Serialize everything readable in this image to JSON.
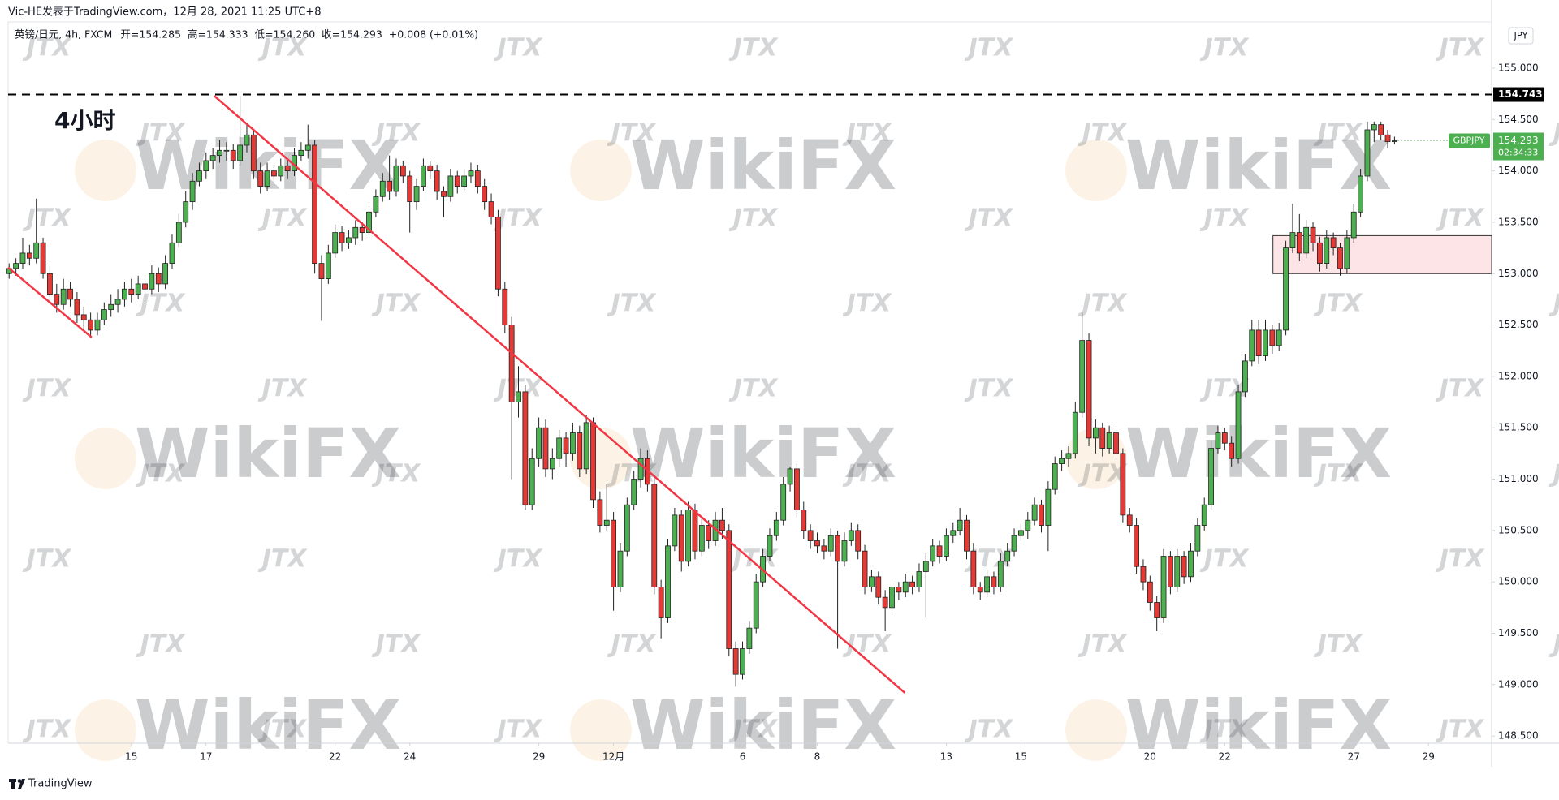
{
  "chart_data": {
    "type": "candlestick",
    "publisher": "Vic-HE发表于TradingView.com，12月 28, 2021 11:25 UTC+8",
    "symbol_line": "英镑/日元, 4h, FXCM",
    "ohlc_text": "开=154.285  高=154.333  低=154.260  收=154.293  +0.008 (+0.01%)",
    "annotation": "4小时",
    "currency": "JPY",
    "footer": "TradingView",
    "watermarks": [
      "WikiFX",
      "JTX"
    ],
    "up_color": "#4caf50",
    "down_color": "#e53935",
    "grid": false,
    "ylim": [
      148.43,
      155.45
    ],
    "yticks": [
      {
        "value": 155,
        "label": "155.000"
      },
      {
        "value": 154.5,
        "label": "154.500"
      },
      {
        "value": 154,
        "label": "154.000"
      },
      {
        "value": 153.5,
        "label": "153.500"
      },
      {
        "value": 153,
        "label": "153.000"
      },
      {
        "value": 152.5,
        "label": "152.500"
      },
      {
        "value": 152,
        "label": "152.000"
      },
      {
        "value": 151.5,
        "label": "151.500"
      },
      {
        "value": 151,
        "label": "151.000"
      },
      {
        "value": 150.5,
        "label": "150.500"
      },
      {
        "value": 150,
        "label": "150.000"
      },
      {
        "value": 149.5,
        "label": "149.500"
      },
      {
        "value": 149,
        "label": "149.000"
      },
      {
        "value": 148.5,
        "label": "148.500"
      }
    ],
    "xlim": [
      -0.15,
      218.3
    ],
    "xticks": [
      {
        "value": 18,
        "label": "15"
      },
      {
        "value": 29,
        "label": "17"
      },
      {
        "value": 48,
        "label": "22"
      },
      {
        "value": 59,
        "label": "24"
      },
      {
        "value": 78,
        "label": "29"
      },
      {
        "value": 89,
        "label": "12月"
      },
      {
        "value": 108,
        "label": "6"
      },
      {
        "value": 119,
        "label": "8"
      },
      {
        "value": 138,
        "label": "13"
      },
      {
        "value": 149,
        "label": "15"
      },
      {
        "value": 168,
        "label": "20"
      },
      {
        "value": 179,
        "label": "22"
      },
      {
        "value": 198,
        "label": "27"
      },
      {
        "value": 209,
        "label": "29"
      }
    ],
    "hline": 154.743,
    "last_price": {
      "symbol": "GBPJPY",
      "value": 154.293,
      "countdown": "02:34:33",
      "color": "#4caf50"
    },
    "trendlines": [
      {
        "x": [
          30.2,
          131.9
        ],
        "y": [
          154.73,
          148.92
        ],
        "color": "#f23645"
      },
      {
        "x": [
          -0.15,
          12.15
        ],
        "y": [
          153.06,
          152.38
        ],
        "color": "#f23645"
      }
    ],
    "zones": [
      {
        "x": [
          186.1,
          218.3
        ],
        "y": [
          153.0,
          153.37
        ],
        "color": "#fde5e7"
      }
    ],
    "ohlc": [
      [
        153.0,
        153.1,
        152.95,
        153.05
      ],
      [
        153.05,
        153.15,
        152.98,
        153.1
      ],
      [
        153.1,
        153.35,
        153.05,
        153.2
      ],
      [
        153.2,
        153.28,
        153.08,
        153.15
      ],
      [
        153.15,
        153.73,
        153.1,
        153.3
      ],
      [
        153.3,
        153.35,
        152.95,
        153.0
      ],
      [
        153.0,
        153.08,
        152.7,
        152.8
      ],
      [
        152.8,
        152.9,
        152.62,
        152.7
      ],
      [
        152.7,
        152.95,
        152.65,
        152.85
      ],
      [
        152.85,
        152.92,
        152.68,
        152.75
      ],
      [
        152.75,
        152.82,
        152.52,
        152.6
      ],
      [
        152.6,
        152.68,
        152.45,
        152.55
      ],
      [
        152.55,
        152.62,
        152.38,
        152.45
      ],
      [
        152.45,
        152.62,
        152.4,
        152.55
      ],
      [
        152.55,
        152.72,
        152.5,
        152.65
      ],
      [
        152.65,
        152.8,
        152.58,
        152.7
      ],
      [
        152.7,
        152.85,
        152.62,
        152.75
      ],
      [
        152.75,
        152.92,
        152.68,
        152.85
      ],
      [
        152.85,
        152.95,
        152.72,
        152.8
      ],
      [
        152.8,
        152.98,
        152.75,
        152.9
      ],
      [
        152.9,
        152.96,
        152.75,
        152.85
      ],
      [
        152.85,
        153.08,
        152.8,
        153.0
      ],
      [
        153.0,
        153.06,
        152.82,
        152.9
      ],
      [
        152.9,
        153.18,
        152.85,
        153.1
      ],
      [
        153.1,
        153.38,
        153.05,
        153.3
      ],
      [
        153.3,
        153.58,
        153.25,
        153.5
      ],
      [
        153.5,
        153.8,
        153.45,
        153.7
      ],
      [
        153.7,
        153.98,
        153.62,
        153.9
      ],
      [
        153.9,
        154.08,
        153.85,
        154.0
      ],
      [
        154.0,
        154.18,
        153.92,
        154.1
      ],
      [
        154.1,
        154.22,
        154.02,
        154.15
      ],
      [
        154.15,
        154.3,
        154.08,
        154.2
      ],
      [
        154.2,
        154.28,
        154.1,
        154.2
      ],
      [
        154.2,
        154.26,
        154.02,
        154.1
      ],
      [
        154.1,
        154.73,
        154.05,
        154.25
      ],
      [
        154.25,
        154.45,
        154.18,
        154.35
      ],
      [
        154.35,
        154.4,
        153.92,
        154.0
      ],
      [
        154.0,
        154.08,
        153.78,
        153.85
      ],
      [
        153.85,
        154.08,
        153.8,
        154.0
      ],
      [
        154.0,
        154.06,
        153.88,
        153.95
      ],
      [
        153.95,
        154.12,
        153.9,
        154.05
      ],
      [
        154.05,
        154.1,
        153.92,
        154.0
      ],
      [
        154.0,
        154.22,
        153.95,
        154.15
      ],
      [
        154.15,
        154.28,
        154.1,
        154.2
      ],
      [
        154.2,
        154.45,
        154.12,
        154.25
      ],
      [
        154.25,
        154.3,
        153.0,
        153.1
      ],
      [
        153.1,
        153.18,
        152.54,
        152.95
      ],
      [
        152.95,
        153.28,
        152.9,
        153.2
      ],
      [
        153.2,
        153.48,
        153.15,
        153.4
      ],
      [
        153.4,
        153.46,
        153.22,
        153.3
      ],
      [
        153.3,
        153.42,
        153.24,
        153.35
      ],
      [
        153.35,
        153.52,
        153.28,
        153.45
      ],
      [
        153.45,
        153.5,
        153.32,
        153.4
      ],
      [
        153.4,
        153.68,
        153.35,
        153.6
      ],
      [
        153.6,
        153.82,
        153.55,
        153.75
      ],
      [
        153.75,
        153.98,
        153.7,
        153.9
      ],
      [
        153.9,
        154.15,
        153.72,
        153.8
      ],
      [
        153.8,
        154.12,
        153.75,
        154.05
      ],
      [
        154.05,
        154.1,
        153.88,
        153.95
      ],
      [
        153.95,
        154.0,
        153.4,
        153.7
      ],
      [
        153.7,
        153.92,
        153.62,
        153.85
      ],
      [
        153.85,
        154.12,
        153.8,
        154.05
      ],
      [
        154.05,
        154.1,
        153.92,
        154.0
      ],
      [
        154.0,
        154.06,
        153.72,
        153.8
      ],
      [
        153.8,
        153.85,
        153.55,
        153.75
      ],
      [
        153.75,
        154.02,
        153.7,
        153.95
      ],
      [
        153.95,
        154.0,
        153.78,
        153.85
      ],
      [
        153.85,
        154.02,
        153.8,
        153.95
      ],
      [
        153.95,
        154.08,
        153.88,
        154.0
      ],
      [
        154.0,
        154.06,
        153.78,
        153.85
      ],
      [
        153.85,
        153.92,
        153.62,
        153.7
      ],
      [
        153.7,
        153.78,
        153.48,
        153.55
      ],
      [
        153.55,
        153.62,
        152.78,
        152.85
      ],
      [
        152.85,
        152.92,
        152.42,
        152.5
      ],
      [
        152.5,
        152.58,
        151.0,
        151.75
      ],
      [
        151.75,
        152.1,
        151.6,
        151.85
      ],
      [
        151.85,
        151.92,
        150.7,
        150.75
      ],
      [
        150.75,
        151.3,
        150.7,
        151.2
      ],
      [
        151.2,
        151.6,
        151.12,
        151.5
      ],
      [
        151.5,
        151.58,
        151.02,
        151.1
      ],
      [
        151.1,
        151.3,
        151.0,
        151.2
      ],
      [
        151.2,
        151.48,
        151.12,
        151.4
      ],
      [
        151.4,
        151.46,
        151.12,
        151.25
      ],
      [
        151.25,
        151.55,
        151.18,
        151.45
      ],
      [
        151.45,
        151.52,
        151.02,
        151.1
      ],
      [
        151.1,
        151.62,
        151.05,
        151.55
      ],
      [
        151.55,
        151.6,
        150.72,
        150.8
      ],
      [
        150.8,
        150.88,
        150.48,
        150.55
      ],
      [
        150.55,
        150.95,
        150.5,
        150.6
      ],
      [
        150.6,
        150.68,
        149.72,
        149.95
      ],
      [
        149.95,
        150.38,
        149.9,
        150.3
      ],
      [
        150.3,
        150.82,
        150.25,
        150.75
      ],
      [
        150.75,
        151.08,
        150.7,
        151.0
      ],
      [
        151.0,
        151.3,
        150.92,
        151.2
      ],
      [
        151.2,
        151.28,
        150.88,
        150.95
      ],
      [
        150.95,
        151.02,
        149.88,
        149.95
      ],
      [
        149.95,
        150.02,
        149.45,
        149.65
      ],
      [
        149.65,
        150.42,
        149.6,
        150.35
      ],
      [
        150.35,
        150.72,
        150.3,
        150.65
      ],
      [
        150.65,
        150.7,
        150.1,
        150.2
      ],
      [
        150.2,
        150.78,
        150.15,
        150.7
      ],
      [
        150.7,
        150.76,
        150.22,
        150.3
      ],
      [
        150.3,
        150.62,
        150.25,
        150.55
      ],
      [
        150.55,
        150.6,
        150.32,
        150.4
      ],
      [
        150.4,
        150.68,
        150.35,
        150.6
      ],
      [
        150.6,
        150.72,
        150.42,
        150.5
      ],
      [
        150.5,
        150.56,
        149.28,
        149.35
      ],
      [
        149.35,
        149.42,
        148.98,
        149.1
      ],
      [
        149.1,
        149.42,
        149.05,
        149.35
      ],
      [
        149.35,
        149.62,
        149.3,
        149.55
      ],
      [
        149.55,
        150.08,
        149.5,
        150.0
      ],
      [
        150.0,
        150.32,
        149.95,
        150.25
      ],
      [
        150.25,
        150.52,
        150.2,
        150.45
      ],
      [
        150.45,
        150.68,
        150.4,
        150.6
      ],
      [
        150.6,
        151.02,
        150.55,
        150.95
      ],
      [
        150.95,
        151.12,
        150.88,
        151.1
      ],
      [
        151.1,
        151.15,
        150.62,
        150.7
      ],
      [
        150.7,
        150.78,
        150.42,
        150.5
      ],
      [
        150.5,
        150.56,
        150.32,
        150.4
      ],
      [
        150.4,
        150.48,
        150.28,
        150.35
      ],
      [
        150.35,
        150.42,
        150.22,
        150.3
      ],
      [
        150.3,
        150.52,
        150.25,
        150.45
      ],
      [
        150.45,
        150.5,
        149.35,
        150.2
      ],
      [
        150.2,
        150.48,
        150.15,
        150.4
      ],
      [
        150.4,
        150.58,
        150.35,
        150.5
      ],
      [
        150.5,
        150.56,
        150.22,
        150.3
      ],
      [
        150.3,
        150.36,
        149.88,
        149.95
      ],
      [
        149.95,
        150.12,
        149.9,
        150.05
      ],
      [
        150.05,
        150.1,
        149.78,
        149.85
      ],
      [
        149.85,
        149.92,
        149.52,
        149.75
      ],
      [
        149.75,
        150.02,
        149.7,
        149.95
      ],
      [
        149.95,
        150.0,
        149.82,
        149.9
      ],
      [
        149.9,
        150.08,
        149.85,
        150.0
      ],
      [
        150.0,
        150.06,
        149.88,
        149.95
      ],
      [
        149.95,
        150.18,
        149.9,
        150.1
      ],
      [
        150.1,
        150.28,
        149.65,
        150.2
      ],
      [
        150.2,
        150.42,
        150.15,
        150.35
      ],
      [
        150.35,
        150.4,
        150.18,
        150.25
      ],
      [
        150.25,
        150.52,
        150.2,
        150.45
      ],
      [
        150.45,
        150.58,
        150.38,
        150.5
      ],
      [
        150.5,
        150.72,
        150.45,
        150.6
      ],
      [
        150.6,
        150.65,
        150.22,
        150.3
      ],
      [
        150.3,
        150.38,
        149.88,
        149.95
      ],
      [
        149.95,
        150.0,
        149.82,
        149.9
      ],
      [
        149.9,
        150.12,
        149.85,
        150.05
      ],
      [
        150.05,
        150.1,
        149.88,
        149.95
      ],
      [
        149.95,
        150.28,
        149.9,
        150.2
      ],
      [
        150.2,
        150.38,
        150.15,
        150.3
      ],
      [
        150.3,
        150.52,
        150.25,
        150.45
      ],
      [
        150.45,
        150.58,
        150.4,
        150.5
      ],
      [
        150.5,
        150.68,
        150.42,
        150.6
      ],
      [
        150.6,
        150.82,
        150.55,
        150.75
      ],
      [
        150.75,
        150.8,
        150.48,
        150.55
      ],
      [
        150.55,
        150.98,
        150.3,
        150.9
      ],
      [
        150.9,
        151.22,
        150.85,
        151.15
      ],
      [
        151.15,
        151.28,
        151.08,
        151.2
      ],
      [
        151.2,
        151.32,
        151.12,
        151.25
      ],
      [
        151.25,
        151.75,
        151.2,
        151.65
      ],
      [
        151.65,
        152.62,
        151.6,
        152.35
      ],
      [
        152.35,
        152.42,
        151.32,
        151.4
      ],
      [
        151.4,
        151.58,
        151.25,
        151.5
      ],
      [
        151.5,
        151.55,
        151.22,
        151.3
      ],
      [
        151.3,
        151.52,
        151.25,
        151.45
      ],
      [
        151.45,
        151.5,
        151.18,
        151.25
      ],
      [
        151.25,
        151.3,
        150.58,
        150.65
      ],
      [
        150.65,
        150.72,
        150.48,
        150.55
      ],
      [
        150.55,
        150.62,
        150.08,
        150.15
      ],
      [
        150.15,
        150.22,
        149.92,
        150.0
      ],
      [
        150.0,
        150.06,
        149.72,
        149.8
      ],
      [
        149.8,
        149.86,
        149.52,
        149.65
      ],
      [
        149.65,
        150.32,
        149.6,
        150.25
      ],
      [
        150.25,
        150.3,
        149.88,
        149.95
      ],
      [
        149.95,
        150.32,
        149.9,
        150.25
      ],
      [
        150.25,
        150.3,
        149.98,
        150.05
      ],
      [
        150.05,
        150.38,
        150.0,
        150.3
      ],
      [
        150.3,
        150.62,
        150.25,
        150.55
      ],
      [
        150.55,
        150.82,
        150.5,
        150.75
      ],
      [
        150.75,
        151.38,
        150.7,
        151.3
      ],
      [
        151.3,
        151.52,
        151.25,
        151.45
      ],
      [
        151.45,
        151.5,
        151.28,
        151.35
      ],
      [
        151.35,
        151.42,
        151.12,
        151.2
      ],
      [
        151.2,
        151.92,
        151.15,
        151.85
      ],
      [
        151.85,
        152.22,
        151.8,
        152.15
      ],
      [
        152.15,
        152.55,
        152.1,
        152.45
      ],
      [
        152.45,
        152.55,
        152.12,
        152.2
      ],
      [
        152.2,
        152.55,
        152.15,
        152.45
      ],
      [
        152.45,
        152.5,
        152.22,
        152.3
      ],
      [
        152.3,
        152.52,
        152.25,
        152.45
      ],
      [
        152.45,
        153.32,
        152.4,
        153.25
      ],
      [
        153.25,
        153.68,
        153.2,
        153.4
      ],
      [
        153.4,
        153.58,
        153.12,
        153.2
      ],
      [
        153.2,
        153.52,
        153.15,
        153.45
      ],
      [
        153.45,
        153.5,
        153.22,
        153.3
      ],
      [
        153.3,
        153.36,
        153.02,
        153.1
      ],
      [
        153.1,
        153.42,
        153.05,
        153.35
      ],
      [
        153.35,
        153.4,
        153.18,
        153.25
      ],
      [
        153.25,
        153.3,
        152.98,
        153.05
      ],
      [
        153.05,
        153.42,
        153.0,
        153.35
      ],
      [
        153.35,
        153.68,
        153.3,
        153.6
      ],
      [
        153.6,
        154.02,
        153.55,
        153.95
      ],
      [
        153.95,
        154.48,
        153.9,
        154.4
      ],
      [
        154.4,
        154.48,
        154.28,
        154.45
      ],
      [
        154.45,
        154.48,
        154.3,
        154.35
      ],
      [
        154.35,
        154.4,
        154.22,
        154.285
      ],
      [
        154.285,
        154.333,
        154.26,
        154.293
      ]
    ]
  }
}
